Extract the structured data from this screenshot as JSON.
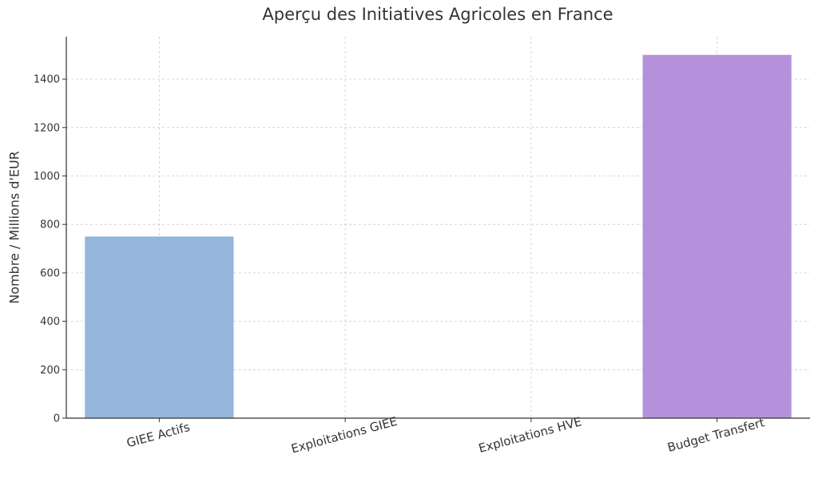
{
  "chart_data": {
    "type": "bar",
    "title": "Aperçu des Initiatives Agricoles en France",
    "xlabel": "",
    "ylabel": "Nombre / Millions d'EUR",
    "categories": [
      "GIEE Actifs",
      "Exploitations GIEE",
      "Exploitations HVE",
      "Budget Transfert"
    ],
    "values": [
      750,
      0,
      0,
      1500
    ],
    "colors": [
      "#94b6db",
      "#94b6db",
      "#94b6db",
      "#b591db"
    ],
    "yticks": [
      0,
      200,
      400,
      600,
      800,
      1000,
      1200,
      1400
    ],
    "ylim": [
      0,
      1575
    ],
    "grid": true,
    "legend": "none"
  }
}
